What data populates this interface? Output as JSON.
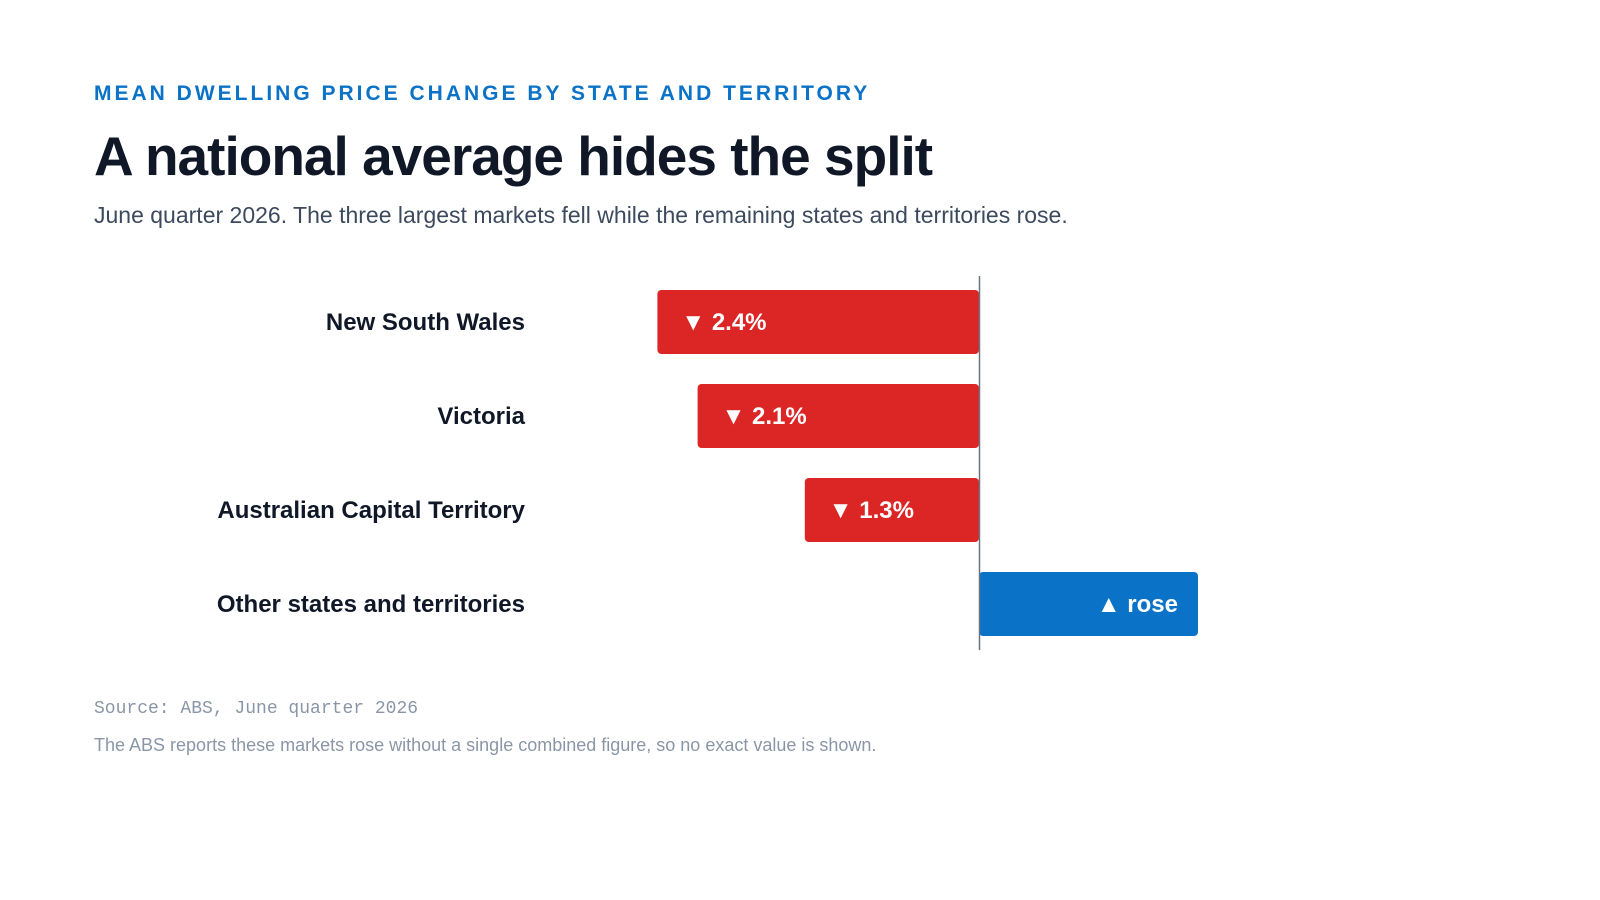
{
  "header": {
    "eyebrow": "MEAN DWELLING PRICE CHANGE BY STATE AND TERRITORY",
    "title": "A national average hides the split",
    "subtitle": "June quarter 2026. The three largest markets fell while the remaining states and territories rose."
  },
  "chart_data": {
    "type": "bar",
    "orientation": "horizontal",
    "categories": [
      "New South Wales",
      "Victoria",
      "Australian Capital Territory",
      "Other states and territories"
    ],
    "values": [
      -2.4,
      -2.1,
      -1.3,
      null
    ],
    "value_labels": [
      "▼ 2.4%",
      "▼ 2.1%",
      "▼ 1.3%",
      "▲ rose"
    ],
    "direction": [
      "fell",
      "fell",
      "fell",
      "rose"
    ],
    "colors": {
      "fell": "#dc2626",
      "rose": "#0a72c7",
      "zero_line": "#6b7280"
    },
    "grid": false,
    "legend": "none"
  },
  "footer": {
    "source": "Source: ABS, June quarter 2026",
    "note": "The ABS reports these markets rose without a single combined figure, so no exact value is shown."
  }
}
